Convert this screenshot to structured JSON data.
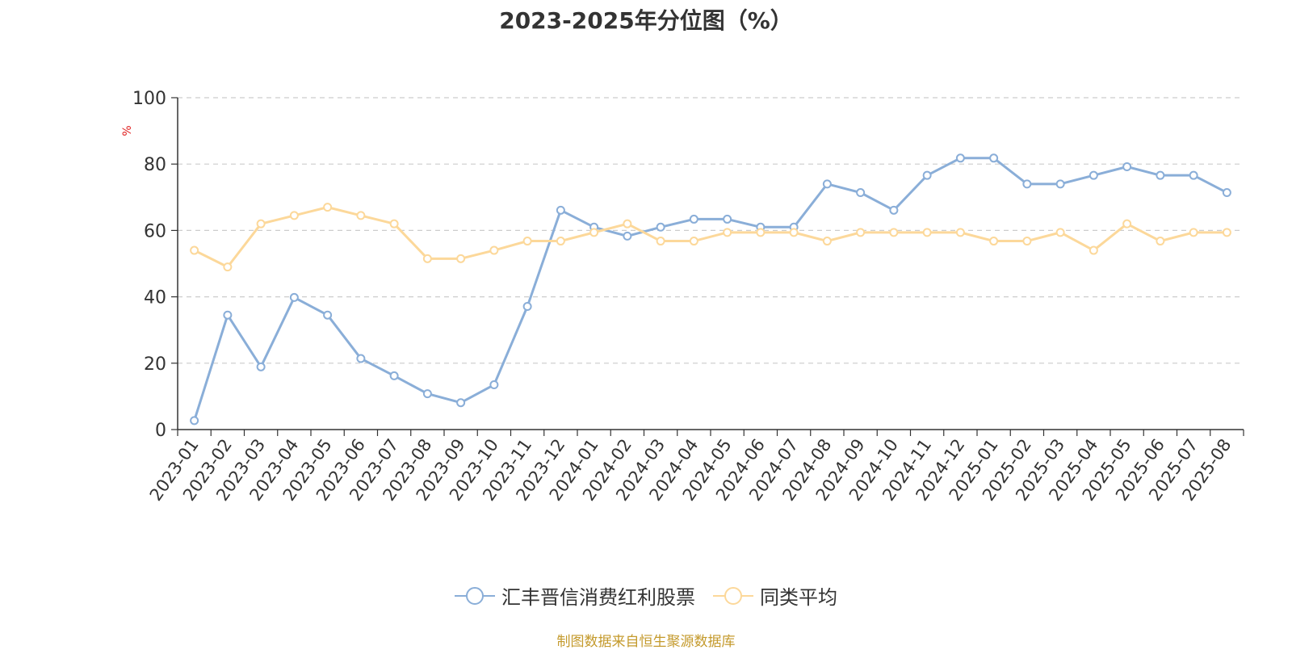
{
  "chart_data": {
    "type": "line",
    "title": "2023-2025年分位图（%）",
    "ylabel": "%",
    "ylim": [
      0,
      100
    ],
    "yticks": [
      0,
      20,
      40,
      60,
      80,
      100
    ],
    "grid": "horizontal dashed",
    "legend_position": "bottom",
    "categories": [
      "2023-01",
      "2023-02",
      "2023-03",
      "2023-04",
      "2023-05",
      "2023-06",
      "2023-07",
      "2023-08",
      "2023-09",
      "2023-10",
      "2023-11",
      "2023-12",
      "2024-01",
      "2024-02",
      "2024-03",
      "2024-04",
      "2024-05",
      "2024-06",
      "2024-07",
      "2024-08",
      "2024-09",
      "2024-10",
      "2024-11",
      "2024-12",
      "2025-01",
      "2025-02",
      "2025-03",
      "2025-04",
      "2025-05",
      "2025-06",
      "2025-07",
      "2025-08"
    ],
    "series": [
      {
        "name": "汇丰晋信消费红利股票",
        "color": "#8aaed8",
        "values": [
          2.7,
          34.5,
          18.9,
          39.8,
          34.5,
          21.4,
          16.2,
          10.8,
          8.1,
          13.5,
          37.1,
          66.1,
          61.0,
          58.3,
          61.0,
          63.4,
          63.4,
          61.0,
          61.0,
          74.0,
          71.4,
          66.1,
          76.6,
          81.8,
          81.8,
          74.0,
          74.0,
          76.6,
          79.2,
          76.6,
          76.6,
          71.4
        ]
      },
      {
        "name": "同类平均",
        "color": "#fcd89a",
        "values": [
          54.0,
          49.0,
          62.0,
          64.5,
          67.0,
          64.5,
          62.0,
          51.5,
          51.5,
          54.0,
          56.8,
          56.8,
          59.4,
          62.0,
          56.8,
          56.8,
          59.4,
          59.4,
          59.4,
          56.8,
          59.4,
          59.4,
          59.4,
          59.4,
          56.8,
          56.8,
          59.4,
          54.0,
          62.0,
          56.8,
          59.4,
          59.4
        ]
      }
    ]
  },
  "source_note": "制图数据来自恒生聚源数据库"
}
